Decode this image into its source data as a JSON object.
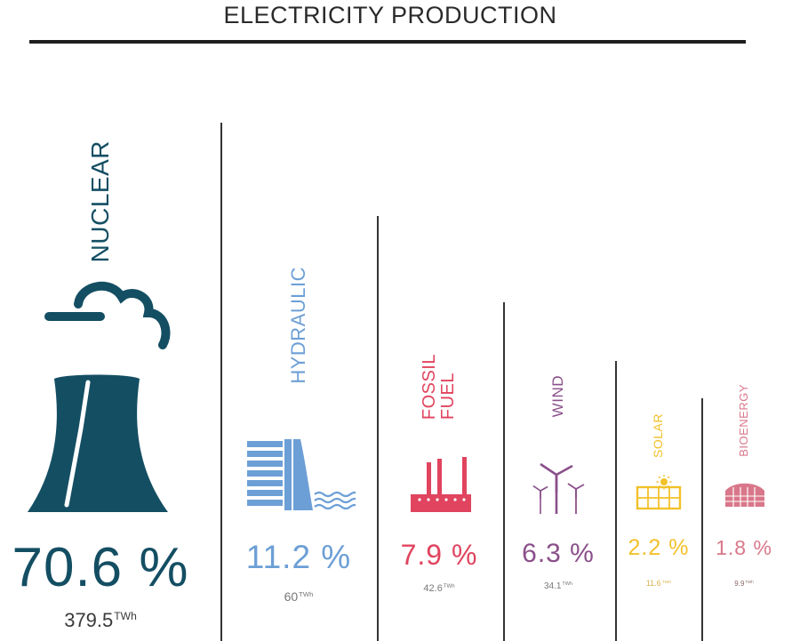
{
  "chart_data": {
    "type": "bar",
    "title": "ELECTRICITY PRODUCTION",
    "unit": "TWh",
    "categories": [
      "NUCLEAR",
      "HYDRAULIC",
      "FOSSIL\nFUEL",
      "WIND",
      "SOLAR",
      "BIOENERGY"
    ],
    "percent_labels": [
      "70.6 %",
      "11.2 %",
      "7.9 %",
      "6.3 %",
      "2.2 %",
      "1.8 %"
    ],
    "value_labels": [
      "379.5",
      "60",
      "42.6",
      "34.1",
      "11.6",
      "9.9"
    ],
    "series": [
      {
        "values": [
          70.6,
          11.2,
          7.9,
          6.3,
          2.2,
          1.8
        ]
      }
    ],
    "twh_values": [
      379.5,
      60,
      42.6,
      34.1,
      11.6,
      9.9
    ],
    "colors": [
      "#144e63",
      "#6c9fd6",
      "#e0445e",
      "#8a4f8a",
      "#f2c12a",
      "#d9778a"
    ],
    "icons": [
      "cooling-tower-icon",
      "dam-icon",
      "factory-icon",
      "wind-turbine-icon",
      "solar-panel-icon",
      "bioenergy-icon"
    ]
  }
}
